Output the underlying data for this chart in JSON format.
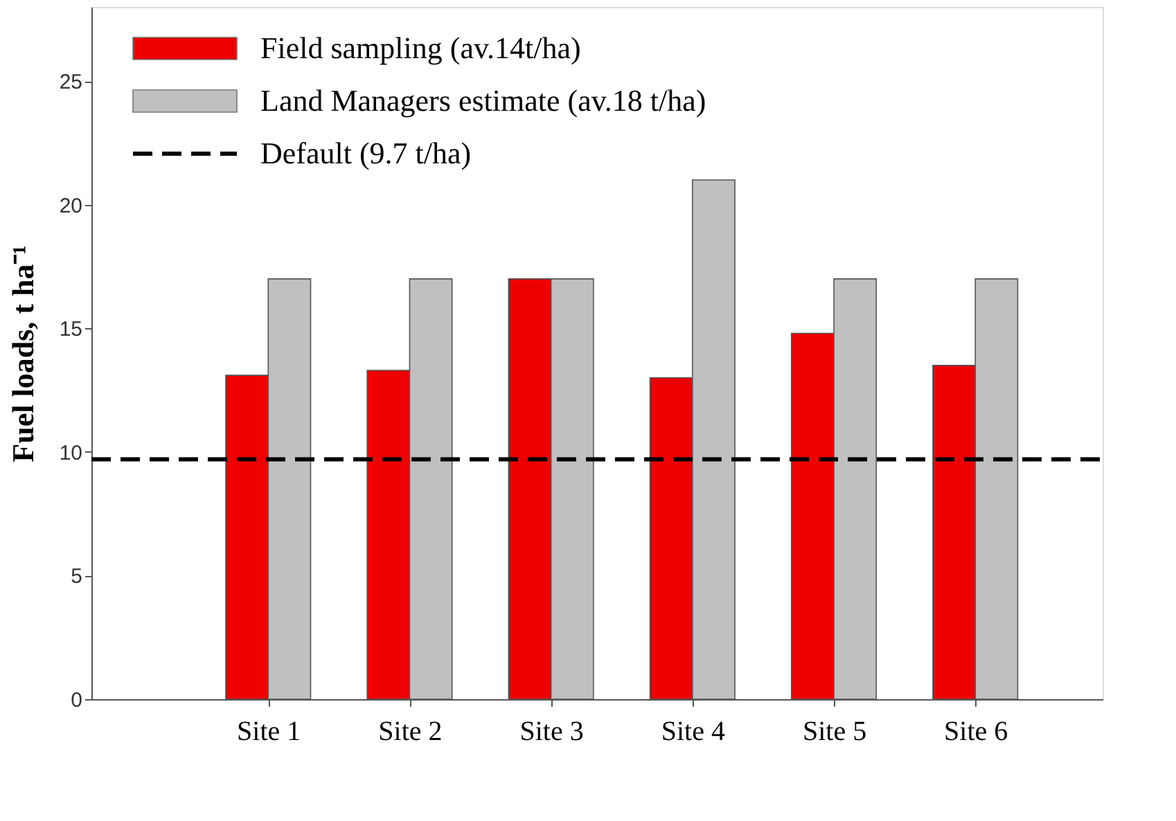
{
  "chart_data": {
    "type": "bar",
    "ylabel": "Fuel loads, t ha⁻¹",
    "categories": [
      "Site 1",
      "Site 2",
      "Site 3",
      "Site 4",
      "Site 5",
      "Site 6"
    ],
    "series": [
      {
        "name": "Field sampling (av.14t/ha)",
        "color": "#ee0000",
        "values": [
          13.1,
          13.3,
          17.0,
          13.0,
          14.8,
          13.5
        ]
      },
      {
        "name": "Land Managers estimate (av.18 t/ha)",
        "color": "#c0c0c0",
        "values": [
          17,
          17,
          17,
          21,
          17,
          17
        ]
      }
    ],
    "ref_lines": [
      {
        "axis": "y",
        "value": 9.7,
        "label": "Default (9.7 t/ha)",
        "color": "#000000",
        "line_style": "dashed"
      }
    ],
    "ylim": [
      0,
      28
    ],
    "yticks": [
      0,
      5,
      10,
      15,
      20,
      25
    ],
    "grid": false,
    "legend": "top left"
  }
}
